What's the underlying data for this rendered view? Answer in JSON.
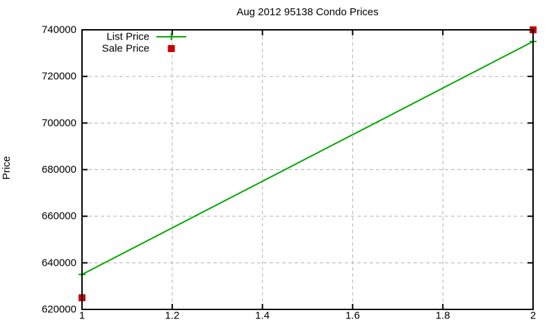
{
  "window": {
    "background": "#ffffff"
  },
  "chart_data": {
    "type": "line",
    "title": "Aug 2012 95138 Condo Prices",
    "xlabel": "",
    "ylabel": "Price",
    "x": [
      1,
      2
    ],
    "series": [
      {
        "name": "List Price",
        "style": "line-with-points",
        "marker": "plus",
        "color": "#00a800",
        "values": [
          635000,
          735000
        ]
      },
      {
        "name": "Sale Price",
        "style": "points",
        "marker": "square",
        "color": "#c80000",
        "values": [
          625000,
          740000
        ]
      }
    ],
    "xlim": [
      1,
      2
    ],
    "ylim": [
      620000,
      740000
    ],
    "xticks": [
      1,
      1.2,
      1.4,
      1.6,
      1.8,
      2
    ],
    "xtick_labels": [
      "1",
      "1.2",
      "1.4",
      "1.6",
      "1.8",
      "2"
    ],
    "yticks": [
      620000,
      640000,
      660000,
      680000,
      700000,
      720000,
      740000
    ],
    "ytick_labels": [
      "620000",
      "640000",
      "660000",
      "680000",
      "700000",
      "720000",
      "740000"
    ],
    "grid": true,
    "grid_color": "#b2b2b2",
    "axis_color": "#000000",
    "text_color": "#000000",
    "legend_position": "top-left",
    "legend_entries": [
      "List Price",
      "Sale Price"
    ]
  }
}
